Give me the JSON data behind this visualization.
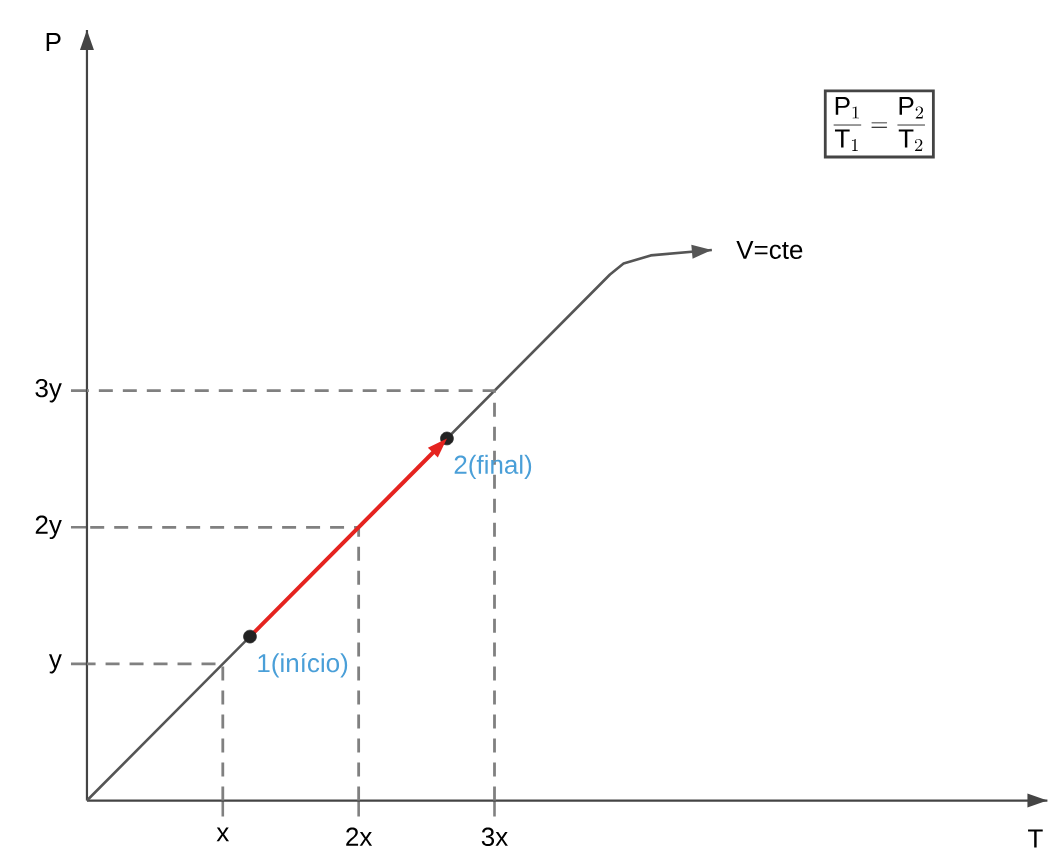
{
  "chart_data": {
    "type": "line",
    "xlabel": "T",
    "ylabel": "P",
    "xlim": [
      0,
      7.07
    ],
    "ylim": [
      0,
      5.64
    ],
    "xticks": [
      {
        "value": 1,
        "label": "x"
      },
      {
        "value": 2,
        "label": "2x"
      },
      {
        "value": 3,
        "label": "3x"
      }
    ],
    "yticks": [
      {
        "value": 1,
        "label": "y"
      },
      {
        "value": 2,
        "label": "2y"
      },
      {
        "value": 3,
        "label": "3y"
      }
    ],
    "series": [
      {
        "color": "#555555",
        "x": [
          0,
          3.85,
          3.95,
          4.15,
          4.6
        ],
        "values": [
          0,
          3.85,
          3.93,
          3.99,
          4.03
        ]
      },
      {
        "color": "#808080",
        "line_style": "dashed",
        "x": [
          1,
          1,
          0
        ],
        "values": [
          0,
          1,
          1
        ]
      },
      {
        "color": "#808080",
        "line_style": "dashed",
        "x": [
          2,
          2,
          0
        ],
        "values": [
          0,
          2,
          2
        ]
      },
      {
        "color": "#808080",
        "line_style": "dashed",
        "x": [
          3,
          3,
          0
        ],
        "values": [
          0,
          3,
          3
        ]
      },
      {
        "color": "#e5231f",
        "x": [
          1.2,
          2.65
        ],
        "values": [
          1.2,
          2.65
        ]
      },
      {
        "type": "scatter",
        "color": "#222222",
        "marker": "circle",
        "x": [
          1.2,
          2.65
        ],
        "values": [
          1.2,
          2.65
        ]
      }
    ],
    "annotations": [
      {
        "text": "1(início)",
        "x": 1.2,
        "y": 1.2
      },
      {
        "text": "2(final)",
        "x": 2.65,
        "y": 2.65
      },
      {
        "text": "V=cte",
        "x": 4.6,
        "y": 4.03
      },
      "\\frac{\\mathrm{P}_{1}}{\\mathrm{T}_{1}} = \\frac{\\mathrm{P}_{2}}{\\mathrm{T}_{2}}"
    ]
  }
}
